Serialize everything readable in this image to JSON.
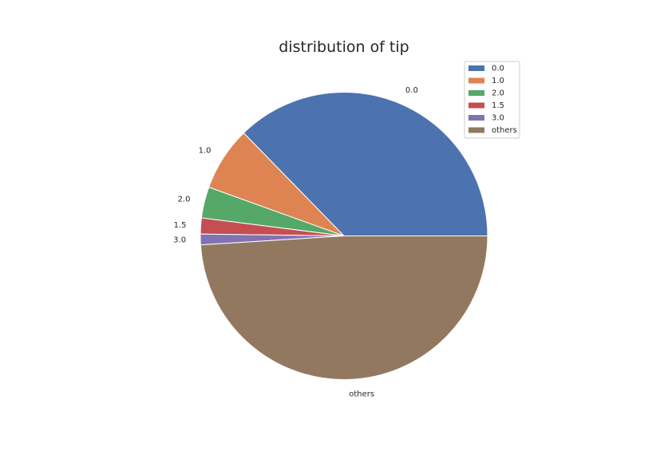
{
  "chart_data": {
    "type": "pie",
    "title": "distribution of tip",
    "categories": [
      "0.0",
      "1.0",
      "2.0",
      "1.5",
      "3.0",
      "others"
    ],
    "values": [
      37.3,
      7.2,
      3.5,
      1.8,
      1.2,
      49.0
    ],
    "colors": [
      "#4c72b0",
      "#dd8452",
      "#55a868",
      "#c44e52",
      "#8172b3",
      "#937860"
    ],
    "legend_position": "top-right"
  }
}
